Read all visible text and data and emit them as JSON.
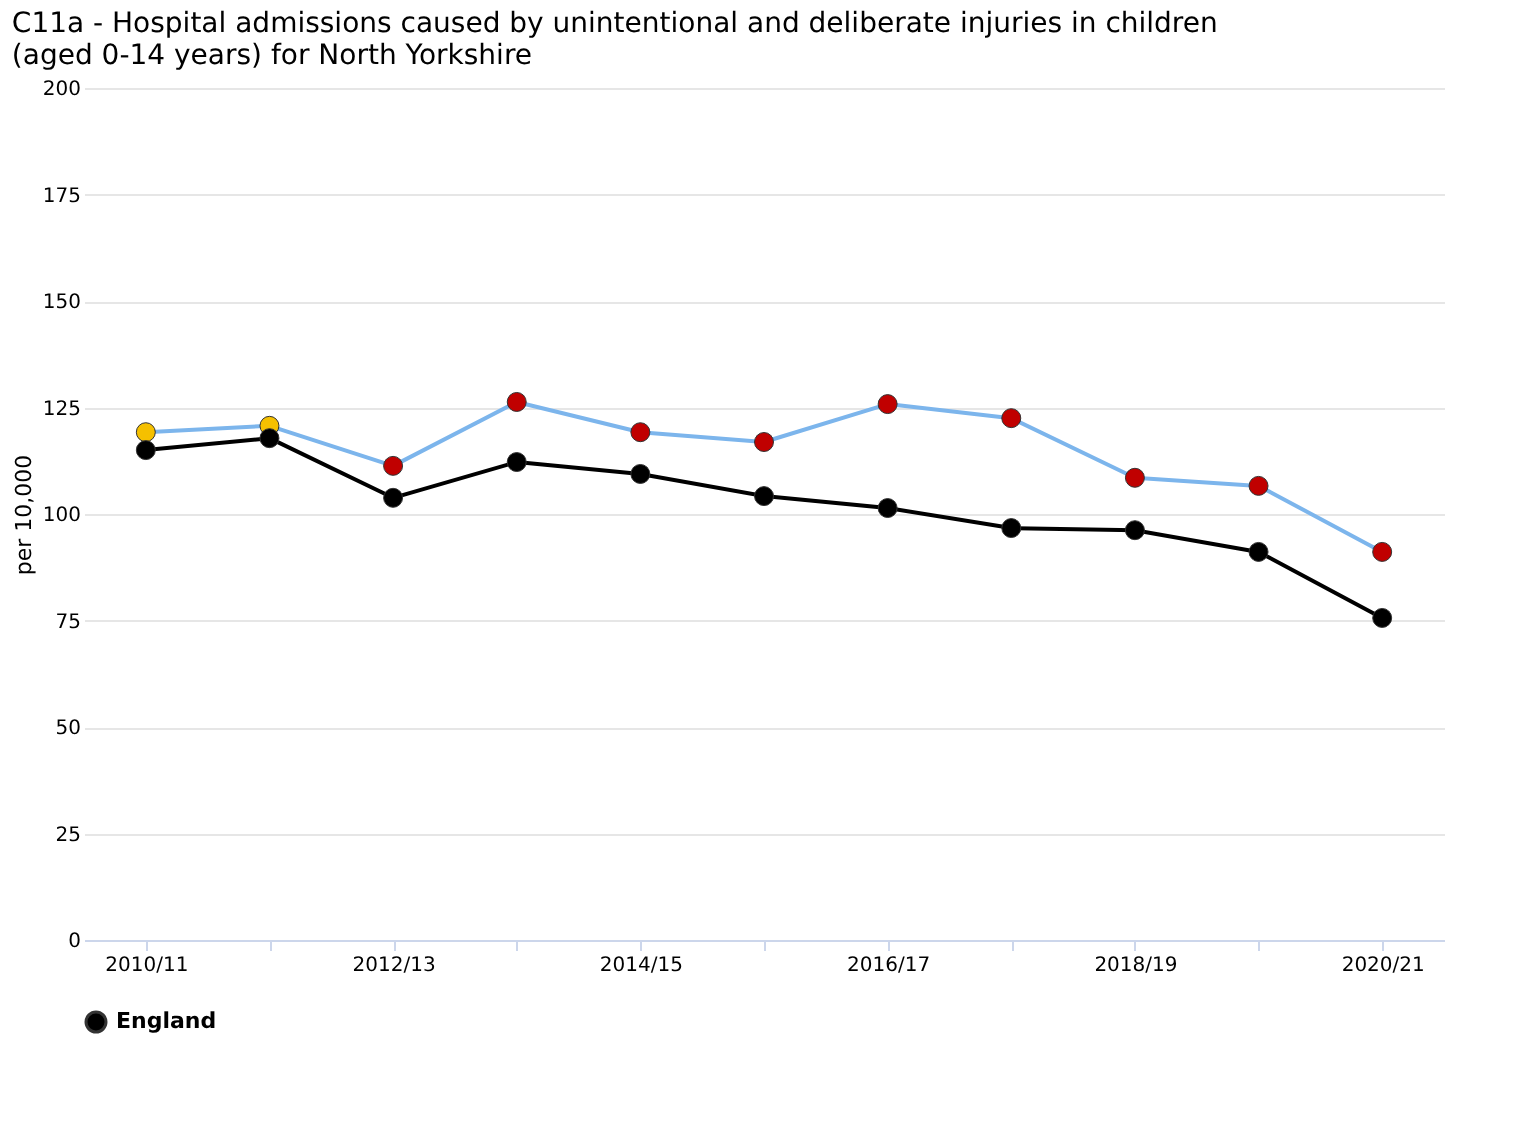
{
  "chart_data": {
    "type": "line",
    "title": "C11a - Hospital admissions caused by unintentional and deliberate injuries in children (aged 0-14 years) for North Yorkshire",
    "ylabel": "per 10,000",
    "categories": [
      "2010/11",
      null,
      "2012/13",
      null,
      "2014/15",
      null,
      "2016/17",
      null,
      "2018/19",
      null,
      "2020/21"
    ],
    "series": [
      {
        "color": "#7cb5ec",
        "colors": [
          "#f5c000",
          "#f5c000",
          "#c00000",
          "#c00000",
          "#c00000",
          "#c00000",
          "#c00000",
          "#c00000",
          "#c00000",
          "#c00000",
          "#c00000"
        ],
        "values": [
          119.2,
          120.7,
          111.3,
          126.3,
          119.2,
          116.9,
          125.8,
          122.5,
          108.5,
          106.6,
          91.1
        ]
      },
      {
        "name": "England",
        "color": "#000000",
        "values": [
          115.0,
          117.8,
          103.8,
          112.2,
          109.4,
          104.2,
          101.4,
          96.7,
          96.2,
          91.1,
          75.6
        ]
      }
    ],
    "ylim": [
      0,
      200
    ],
    "yticks": [
      0,
      25,
      50,
      75,
      100,
      125,
      150,
      175,
      200
    ],
    "grid": "y",
    "legend": "bottom",
    "marker": "circle",
    "line_style": "solid"
  }
}
